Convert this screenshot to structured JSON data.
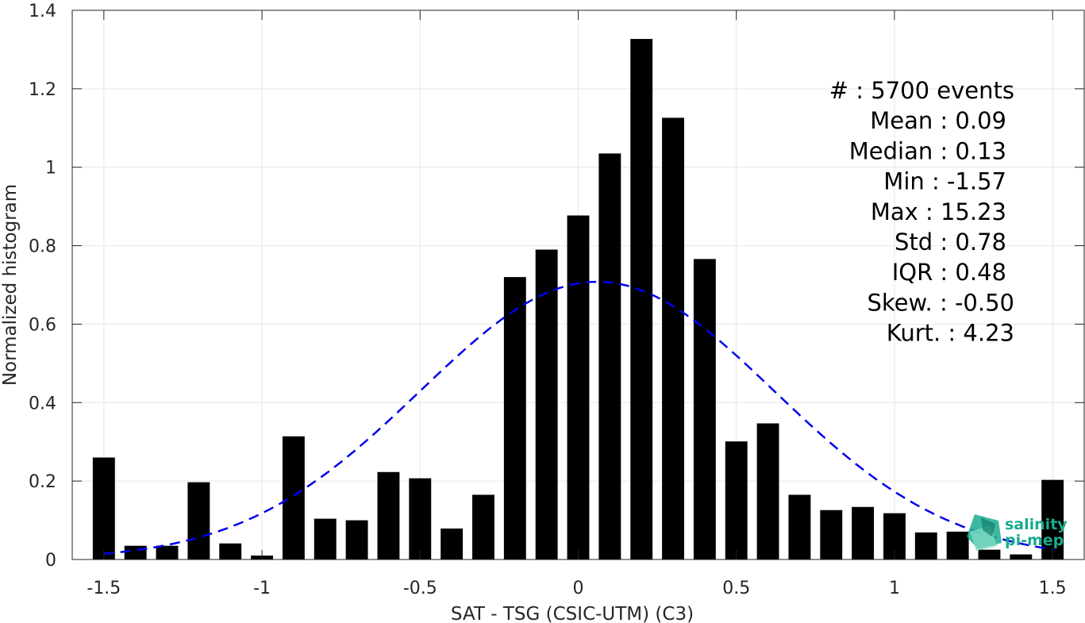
{
  "chart_data": {
    "type": "bar",
    "xlabel": "SAT - TSG (CSIC-UTM) (C3)",
    "ylabel": "Normalized histogram",
    "xlim": [
      -1.6,
      1.6
    ],
    "ylim": [
      0,
      1.4
    ],
    "xticks": [
      -1.5,
      -1,
      -0.5,
      0,
      0.5,
      1,
      1.5
    ],
    "xtick_labels": [
      "-1.5",
      "-1",
      "-0.5",
      "0",
      "0.5",
      "1",
      "1.5"
    ],
    "yticks": [
      0,
      0.2,
      0.4,
      0.6,
      0.8,
      1,
      1.2,
      1.4
    ],
    "ytick_labels": [
      "0",
      "0.2",
      "0.4",
      "0.6",
      "0.8",
      "1",
      "1.2",
      "1.4"
    ],
    "grid": true,
    "bar_width": 0.07,
    "bar_color": "#000000",
    "bars": {
      "x": [
        -1.5,
        -1.4,
        -1.3,
        -1.2,
        -1.1,
        -1.0,
        -0.9,
        -0.8,
        -0.7,
        -0.6,
        -0.5,
        -0.4,
        -0.3,
        -0.2,
        -0.1,
        0.0,
        0.1,
        0.2,
        0.3,
        0.4,
        0.5,
        0.6,
        0.7,
        0.8,
        0.9,
        1.0,
        1.1,
        1.2,
        1.3,
        1.4,
        1.5
      ],
      "values": [
        0.26,
        0.035,
        0.035,
        0.197,
        0.041,
        0.01,
        0.314,
        0.104,
        0.1,
        0.223,
        0.207,
        0.079,
        0.165,
        0.72,
        0.79,
        0.877,
        1.035,
        1.327,
        1.126,
        0.766,
        0.301,
        0.347,
        0.165,
        0.126,
        0.134,
        0.118,
        0.069,
        0.071,
        0.025,
        0.013,
        0.203
      ]
    },
    "fit_curve": {
      "style": "dashed",
      "color": "#0000ee",
      "mean": 0.06,
      "std": 0.56,
      "peak": 0.708,
      "x_range": [
        -1.5,
        1.5
      ]
    },
    "stats": [
      "#  : 5700 events",
      "Mean : 0.09",
      "Median : 0.13",
      "Min : -1.57",
      "Max : 15.23",
      "Std : 0.78",
      "IQR : 0.48",
      "Skew. : -0.50",
      "Kurt. : 4.23"
    ]
  },
  "logo": {
    "line1": "salinity",
    "line2": "pi-mep",
    "color": "#1aab8f"
  }
}
